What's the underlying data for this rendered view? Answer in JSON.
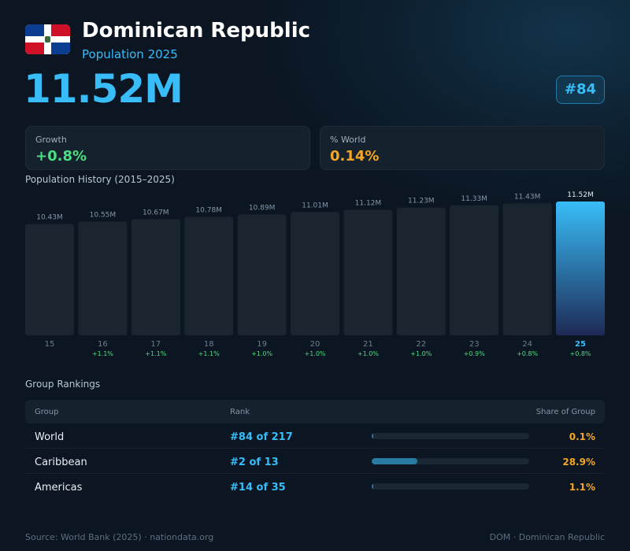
{
  "header": {
    "country": "Dominican Republic",
    "subtitle": "Population 2025",
    "population": "11.52M",
    "rank_badge": "#84"
  },
  "stats": {
    "growth_label": "Growth",
    "growth_value": "+0.8%",
    "world_label": "% World",
    "world_value": "0.14%"
  },
  "colors": {
    "accent": "#38bdf8",
    "growth": "#4ade80",
    "world": "#f5a623",
    "bar": "#1a2530",
    "highlight_top": "#38bdf8",
    "highlight_bottom": "#1e2a55"
  },
  "history_title": "Population History (2015–2025)",
  "chart_data": {
    "type": "bar",
    "title": "Population History (2015–2025)",
    "categories": [
      "15",
      "16",
      "17",
      "18",
      "19",
      "20",
      "21",
      "22",
      "23",
      "24",
      "25"
    ],
    "values": [
      10.43,
      10.55,
      10.67,
      10.78,
      10.89,
      11.01,
      11.12,
      11.23,
      11.33,
      11.43,
      11.52
    ],
    "value_labels": [
      "10.43M",
      "10.55M",
      "10.67M",
      "10.78M",
      "10.89M",
      "11.01M",
      "11.12M",
      "11.23M",
      "11.33M",
      "11.43M",
      "11.52M"
    ],
    "growth_labels": [
      "",
      "+1.1%",
      "+1.1%",
      "+1.1%",
      "+1.0%",
      "+1.0%",
      "+1.0%",
      "+1.0%",
      "+0.9%",
      "+0.8%",
      "+0.8%"
    ],
    "highlight_index": 10,
    "unit": "M"
  },
  "rankings": {
    "title": "Group Rankings",
    "headers": {
      "group": "Group",
      "rank": "Rank",
      "share": "Share of Group"
    },
    "rows": [
      {
        "group": "World",
        "rank": "#84 of 217",
        "share": "0.1%",
        "share_value": 0.1
      },
      {
        "group": "Caribbean",
        "rank": "#2 of 13",
        "share": "28.9%",
        "share_value": 28.9
      },
      {
        "group": "Americas",
        "rank": "#14 of 35",
        "share": "1.1%",
        "share_value": 1.1
      }
    ]
  },
  "footer": {
    "source": "Source: World Bank (2025) · nationdata.org",
    "code": "DOM · Dominican Republic"
  }
}
